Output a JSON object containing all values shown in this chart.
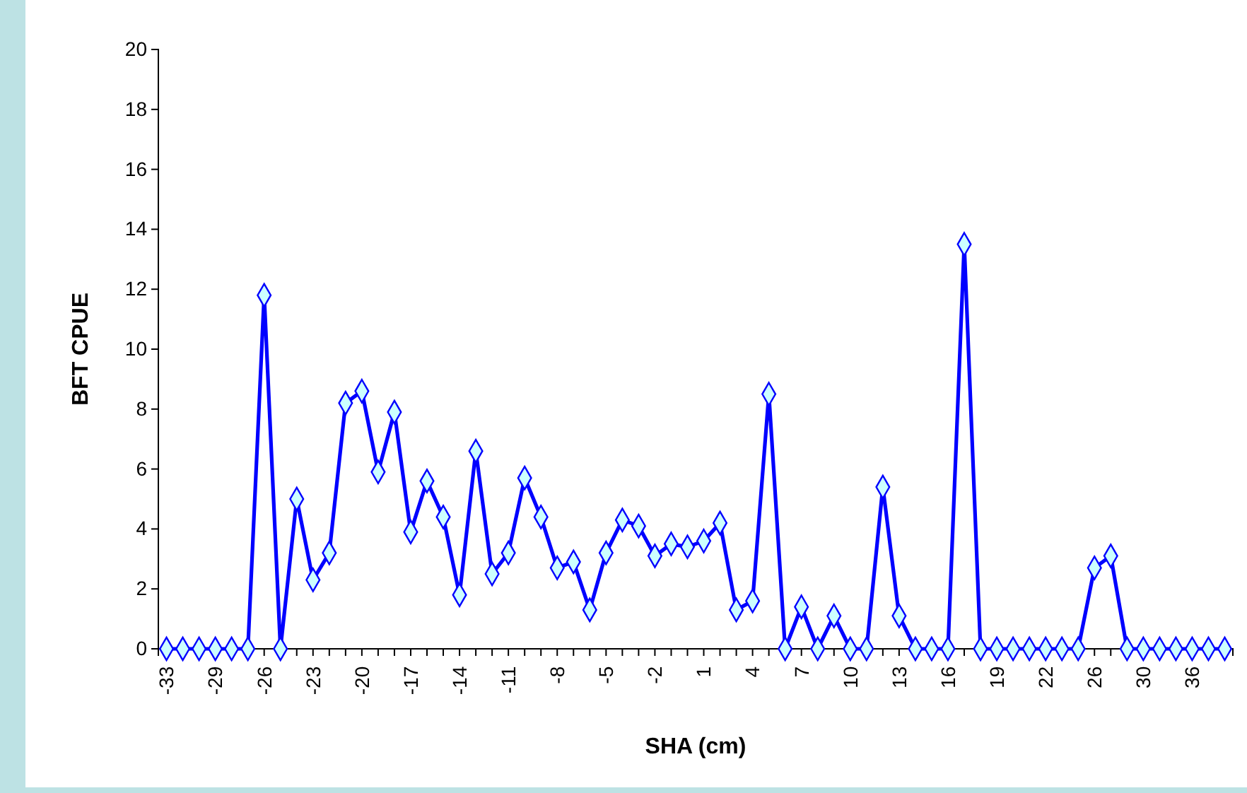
{
  "chart_data": {
    "type": "line",
    "xlabel": "SHA (cm)",
    "ylabel": "BFT CPUE",
    "categories": [
      "-33",
      null,
      null,
      "-29",
      null,
      null,
      "-26",
      null,
      null,
      "-23",
      null,
      null,
      "-20",
      null,
      null,
      "-17",
      null,
      null,
      "-14",
      null,
      null,
      "-11",
      null,
      null,
      "-8",
      null,
      null,
      "-5",
      null,
      null,
      "-2",
      null,
      null,
      "1",
      null,
      null,
      "4",
      null,
      null,
      "7",
      null,
      null,
      "10",
      null,
      null,
      "13",
      null,
      null,
      "16",
      null,
      null,
      "19",
      null,
      null,
      "22",
      null,
      null,
      "26",
      null,
      null,
      "30",
      null,
      null,
      "36",
      null,
      null
    ],
    "series": [
      {
        "color": "#0000ff",
        "values": [
          0,
          0,
          0,
          0,
          0,
          0,
          11.8,
          0,
          5.0,
          2.3,
          3.2,
          8.2,
          8.6,
          5.9,
          7.9,
          3.9,
          5.6,
          4.4,
          1.8,
          6.6,
          2.5,
          3.2,
          5.7,
          4.4,
          2.7,
          2.9,
          1.3,
          3.2,
          4.3,
          4.1,
          3.1,
          3.5,
          3.4,
          3.6,
          4.2,
          1.3,
          1.6,
          8.5,
          0,
          1.4,
          0,
          1.1,
          0,
          0,
          5.4,
          1.1,
          0,
          0,
          0,
          13.5,
          0,
          0,
          0,
          0,
          0,
          0,
          0,
          2.7,
          3.1,
          0,
          0,
          0,
          0,
          0,
          0,
          0
        ]
      }
    ],
    "ylim": [
      0,
      20
    ],
    "yticks": [
      0,
      2,
      4,
      6,
      8,
      10,
      12,
      14,
      16,
      18,
      20
    ],
    "grid": false,
    "marker": "diamond",
    "line_style": "solid"
  }
}
